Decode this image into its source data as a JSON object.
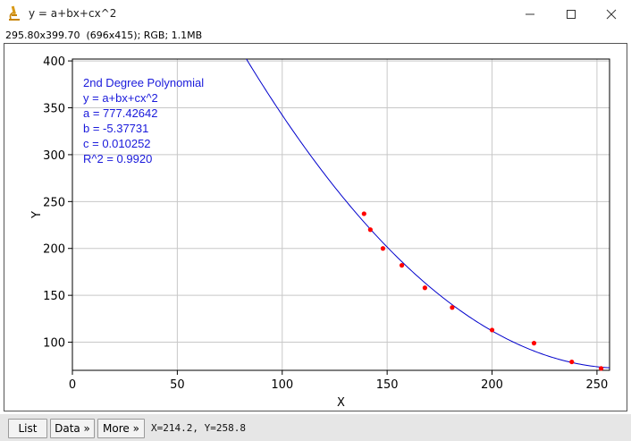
{
  "window": {
    "title": "y = a+bx+cx^2",
    "app_icon": "microscope-icon",
    "controls": [
      "minimize-icon",
      "maximize-icon",
      "close-icon"
    ]
  },
  "info_bar": "295.80x399.70  (696x415); RGB; 1.1MB",
  "legend": {
    "lines": [
      "2nd Degree Polynomial",
      "y = a+bx+cx^2",
      "a = 777.42642",
      "b = -5.37731",
      "c = 0.010252",
      "R^2 = 0.9920"
    ]
  },
  "chart_data": {
    "type": "scatter",
    "xlabel": "X",
    "ylabel": "Y",
    "xlim": [
      0,
      256
    ],
    "ylim": [
      70,
      402
    ],
    "x_ticks": [
      0,
      50,
      100,
      150,
      200,
      250
    ],
    "y_ticks": [
      100,
      150,
      200,
      250,
      300,
      350,
      400
    ],
    "grid": true,
    "points": {
      "x": [
        139,
        142,
        148,
        157,
        168,
        181,
        200,
        220,
        238,
        252
      ],
      "y": [
        237,
        220,
        200,
        182,
        158,
        137,
        113,
        99,
        79,
        72
      ],
      "color": "#ff0000"
    },
    "fit": {
      "a": 777.42642,
      "b": -5.37731,
      "c": 0.010252,
      "color": "#0000cc"
    }
  },
  "colors": {
    "fit_line": "#0000cc",
    "points": "#ff0000",
    "legend_text": "#1a1adb",
    "grid": "#c8c8c8"
  },
  "bottom_bar": {
    "list_label": "List",
    "data_label": "Data »",
    "more_label": "More »",
    "coords": "X=214.2, Y=258.8"
  }
}
